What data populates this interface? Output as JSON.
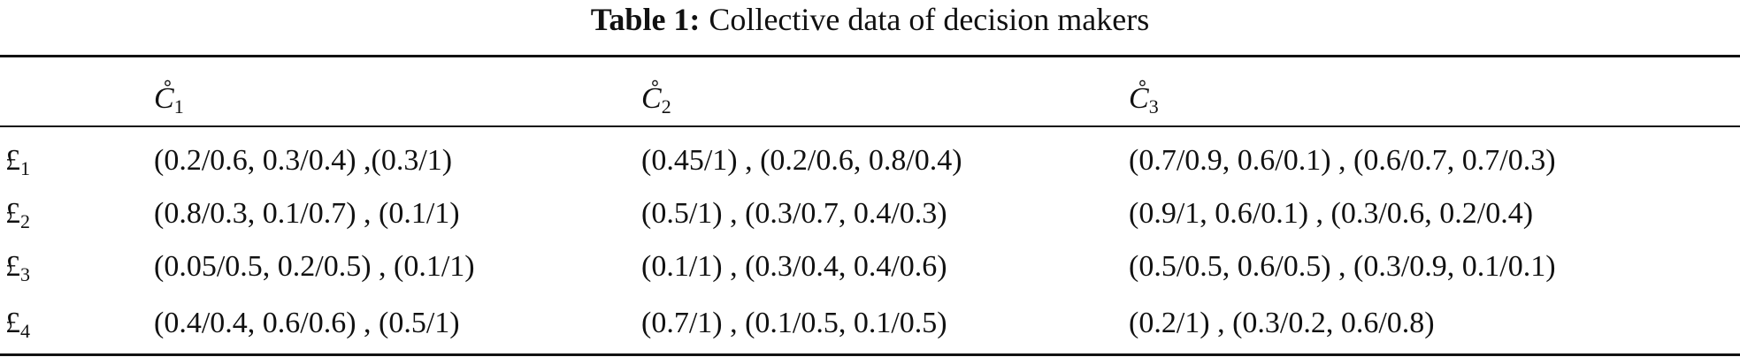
{
  "table": {
    "title_label": "Table 1:",
    "title": "Collective data of decision makers",
    "columns": [
      {
        "letter": "C̊",
        "sub": "1"
      },
      {
        "letter": "C̊",
        "sub": "2"
      },
      {
        "letter": "C̊",
        "sub": "3"
      }
    ],
    "rows": [
      {
        "letter": "£",
        "sub": "1",
        "cells": [
          "(0.2/0.6, 0.3/0.4) ,(0.3/1)",
          "(0.45/1) , (0.2/0.6, 0.8/0.4)",
          "(0.7/0.9, 0.6/0.1) , (0.6/0.7, 0.7/0.3)"
        ]
      },
      {
        "letter": "£",
        "sub": "2",
        "cells": [
          "(0.8/0.3, 0.1/0.7) , (0.1/1)",
          "(0.5/1) , (0.3/0.7, 0.4/0.3)",
          "(0.9/1, 0.6/0.1) , (0.3/0.6, 0.2/0.4)"
        ]
      },
      {
        "letter": "£",
        "sub": "3",
        "cells": [
          "(0.05/0.5, 0.2/0.5) , (0.1/1)",
          "(0.1/1) , (0.3/0.4, 0.4/0.6)",
          "(0.5/0.5, 0.6/0.5) , (0.3/0.9, 0.1/0.1)"
        ]
      },
      {
        "letter": "£",
        "sub": "4",
        "cells": [
          "(0.4/0.4, 0.6/0.6) , (0.5/1)",
          "(0.7/1) , (0.1/0.5, 0.1/0.5)",
          "(0.2/1) , (0.3/0.2, 0.6/0.8)"
        ]
      }
    ]
  }
}
